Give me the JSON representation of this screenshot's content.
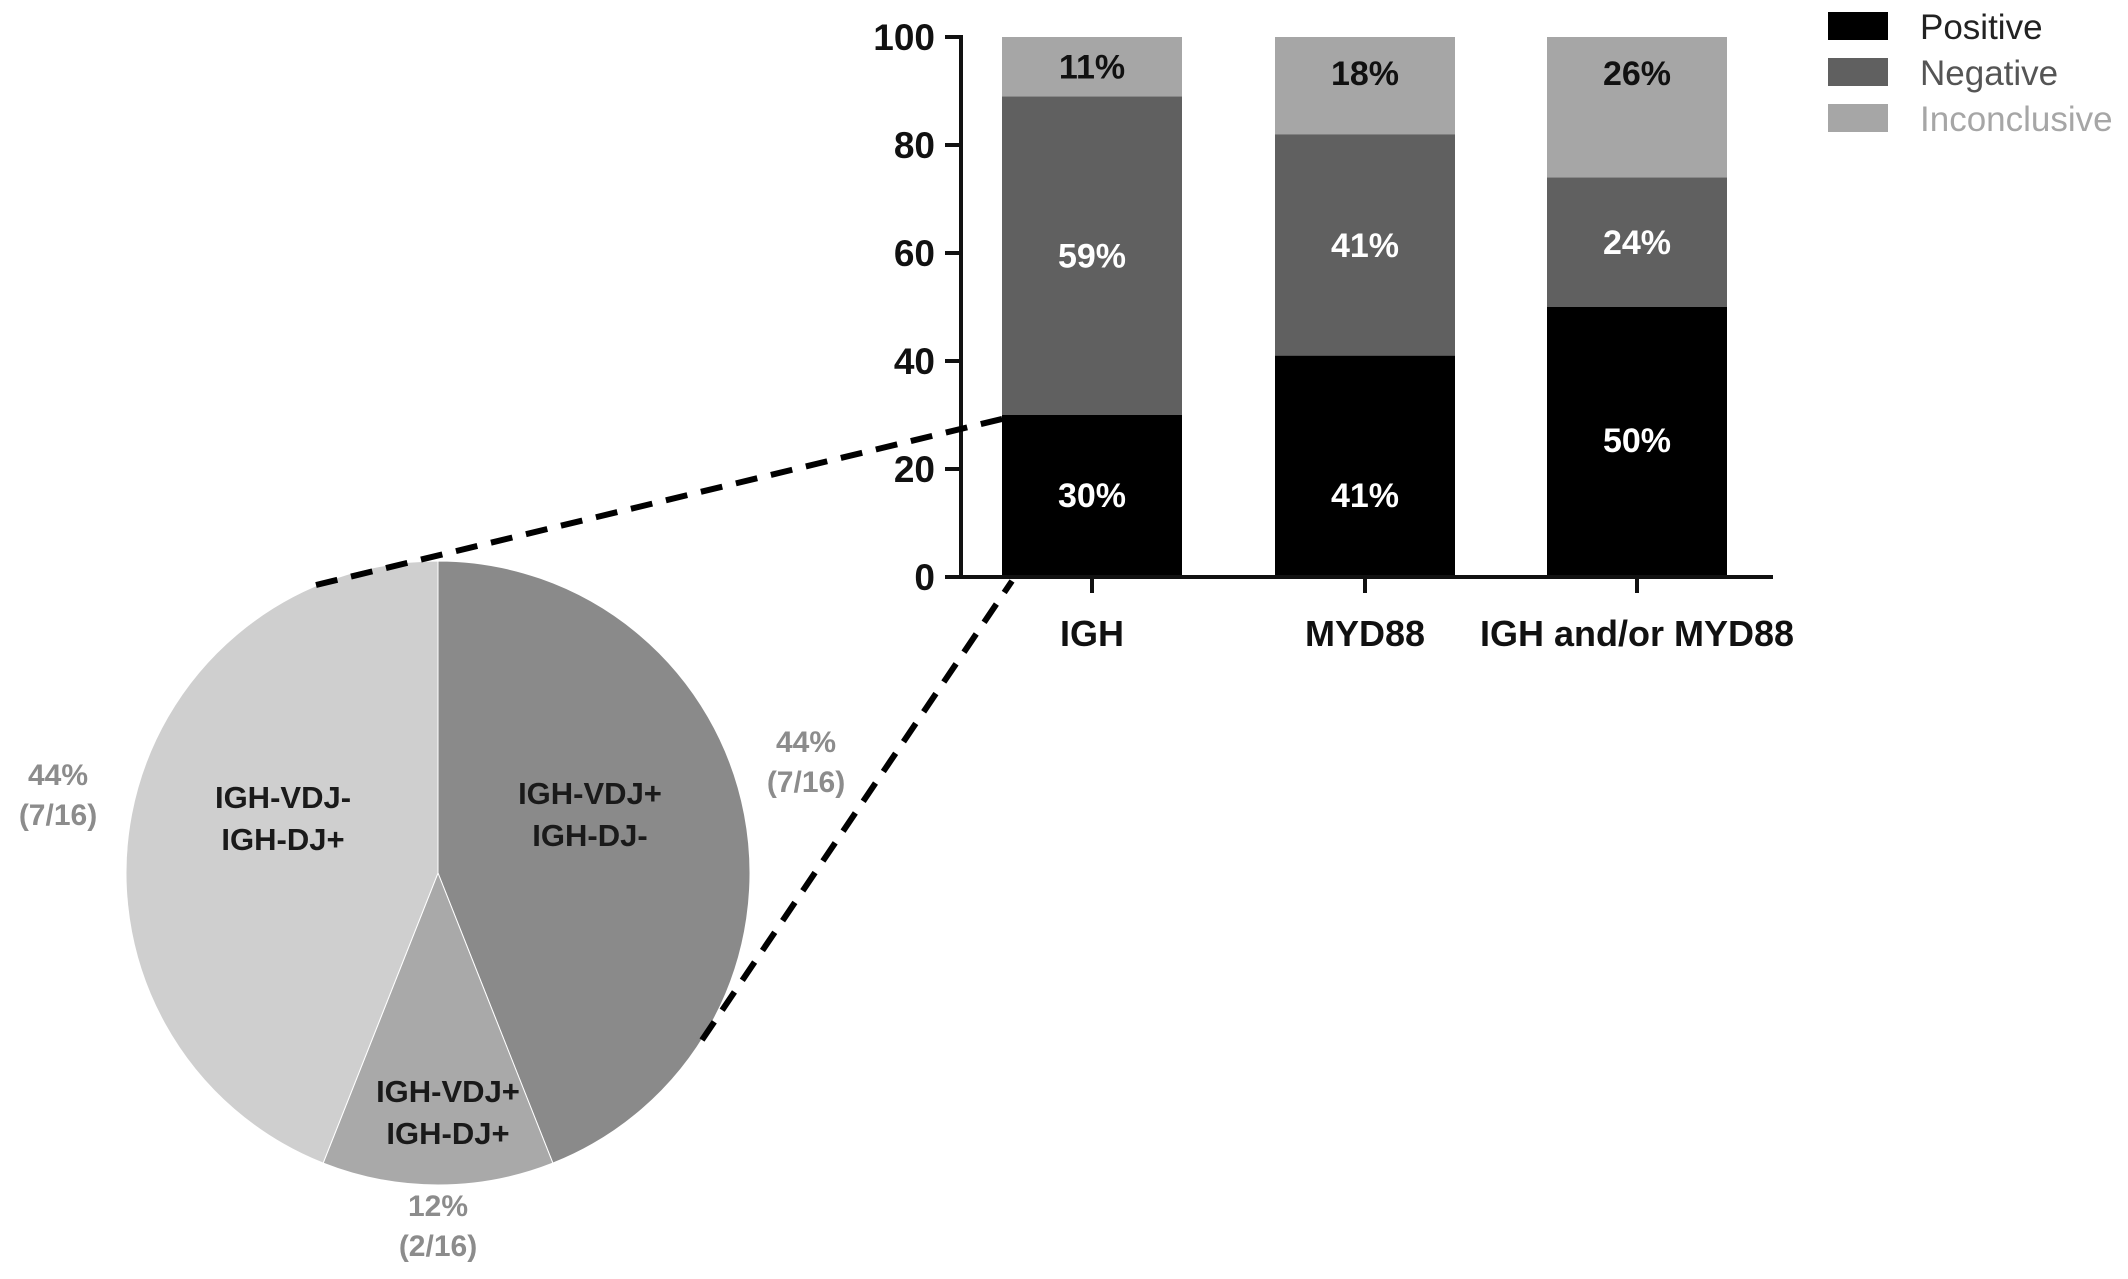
{
  "chart_data": [
    {
      "type": "bar",
      "stacked": true,
      "categories": [
        "IGH",
        "MYD88",
        "IGH and/or MYD88"
      ],
      "series": [
        {
          "name": "Positive",
          "values": [
            30,
            41,
            50
          ],
          "labels": [
            "30%",
            "41%",
            "50%"
          ],
          "color": "#000000",
          "label_color": "#ffffff"
        },
        {
          "name": "Negative",
          "values": [
            59,
            41,
            24
          ],
          "labels": [
            "59%",
            "41%",
            "24%"
          ],
          "color": "#606060",
          "label_color": "#ffffff"
        },
        {
          "name": "Inconclusive",
          "values": [
            11,
            18,
            26
          ],
          "labels": [
            "11%",
            "18%",
            "26%"
          ],
          "color": "#a6a6a6",
          "label_color": "#111111"
        }
      ],
      "ylim": [
        0,
        100
      ],
      "yticks": [
        "0",
        "20",
        "40",
        "60",
        "80",
        "100"
      ],
      "legend": {
        "placement": "top-right",
        "colors": [
          "#000000",
          "#606060",
          "#a6a6a6"
        ],
        "text_colors": [
          "#222222",
          "#555555",
          "#a6a6a6"
        ]
      },
      "grid": false,
      "title": "",
      "xlabel": "",
      "ylabel": ""
    },
    {
      "type": "pie",
      "slices": [
        {
          "label_lines": [
            "IGH-VDJ+",
            "IGH-DJ-"
          ],
          "value": 44,
          "pct_lines": [
            "44%",
            "(7/16)"
          ],
          "color": "#8a8a8a"
        },
        {
          "label_lines": [
            "IGH-VDJ+",
            "IGH-DJ+"
          ],
          "value": 12,
          "pct_lines": [
            "12%",
            "(2/16)"
          ],
          "color": "#a9a9a9"
        },
        {
          "label_lines": [
            "IGH-VDJ-",
            "IGH-DJ+"
          ],
          "value": 44,
          "pct_lines": [
            "44%",
            "(7/16)"
          ],
          "color": "#cfcfcf"
        }
      ],
      "breakout_of": "IGH Positive",
      "title": ""
    }
  ]
}
